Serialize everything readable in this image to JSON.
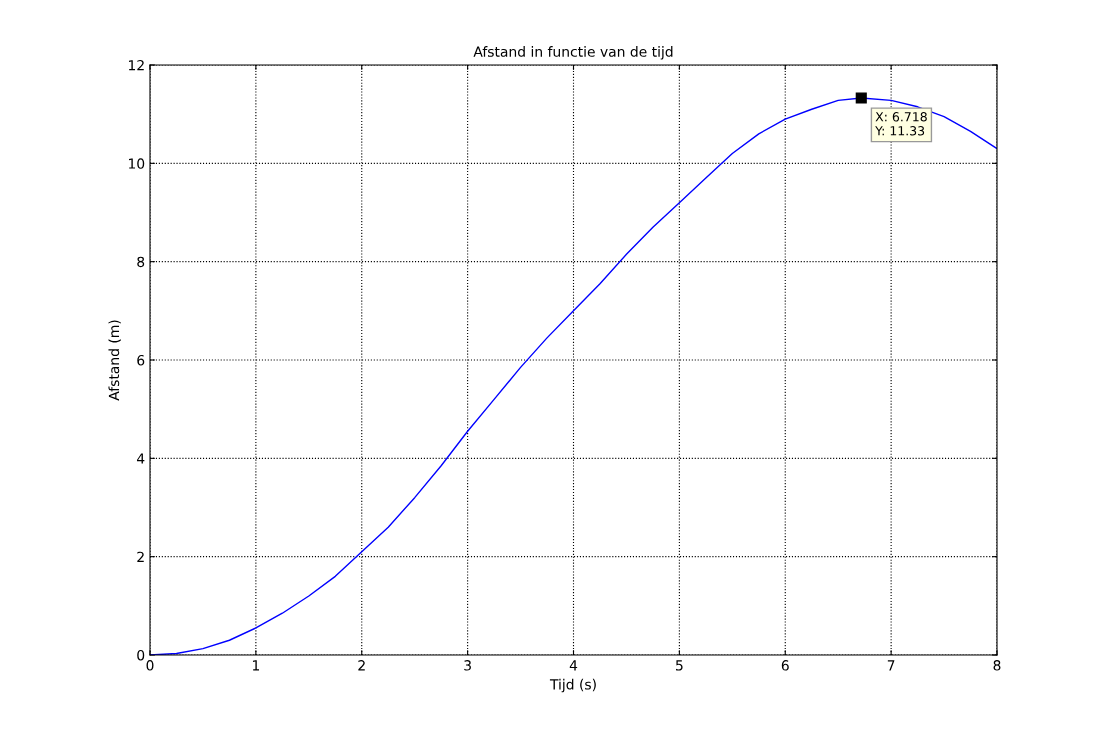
{
  "chart_data": {
    "type": "line",
    "title": "Afstand in functie van de tijd",
    "xlabel": "Tijd (s)",
    "ylabel": "Afstand (m)",
    "x": [
      0,
      0.25,
      0.5,
      0.75,
      1,
      1.25,
      1.5,
      1.75,
      2,
      2.25,
      2.5,
      2.75,
      3,
      3.25,
      3.5,
      3.75,
      4,
      4.25,
      4.5,
      4.75,
      5,
      5.25,
      5.5,
      5.75,
      6,
      6.25,
      6.5,
      6.718,
      7,
      7.25,
      7.5,
      7.75,
      8
    ],
    "series": [
      {
        "color": "#0000ff",
        "values": [
          0,
          0.03,
          0.13,
          0.3,
          0.55,
          0.85,
          1.2,
          1.6,
          2.1,
          2.6,
          3.2,
          3.85,
          4.55,
          5.2,
          5.85,
          6.45,
          7.0,
          7.55,
          8.15,
          8.7,
          9.2,
          9.7,
          10.2,
          10.6,
          10.9,
          11.1,
          11.28,
          11.33,
          11.28,
          11.15,
          10.95,
          10.65,
          10.3
        ]
      }
    ],
    "annotations": [
      {
        "text": "X: 6.718\nY: 11.33",
        "x": 6.718,
        "y": 11.33
      }
    ],
    "xlim": [
      0,
      8
    ],
    "ylim": [
      0,
      12
    ],
    "xticks": [
      0,
      1,
      2,
      3,
      4,
      5,
      6,
      7,
      8
    ],
    "yticks": [
      0,
      2,
      4,
      6,
      8,
      10,
      12
    ],
    "grid": true,
    "legend": false,
    "marker": "none",
    "line_style": "solid"
  }
}
